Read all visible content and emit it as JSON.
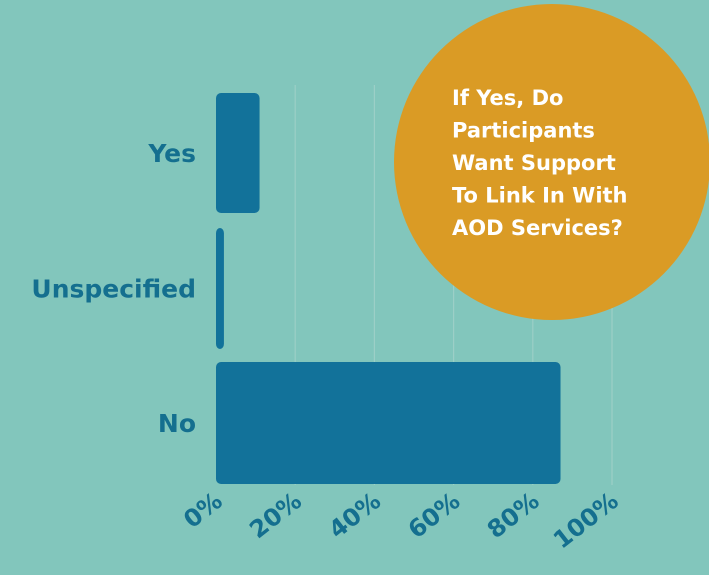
{
  "chart_data": {
    "type": "bar",
    "orientation": "horizontal",
    "title_lines": [
      "If Yes, Do",
      "Participants",
      "Want Support",
      "To Link In With",
      "AOD Services?"
    ],
    "categories": [
      "Yes",
      "Unspecified",
      "No"
    ],
    "values": [
      11,
      2,
      87
    ],
    "xlabel": "",
    "ylabel": "",
    "xlim": [
      0,
      100
    ],
    "xticks": [
      "0%",
      "20%",
      "40%",
      "60%",
      "80%",
      "100%"
    ],
    "grid": true,
    "legend": "none"
  },
  "colors": {
    "background": "#82c6bc",
    "bar": "#12729a",
    "gridline": "#9ccfc7",
    "label": "#146f8f",
    "title_circle": "#da9b25",
    "title_text": "#ffffff"
  }
}
